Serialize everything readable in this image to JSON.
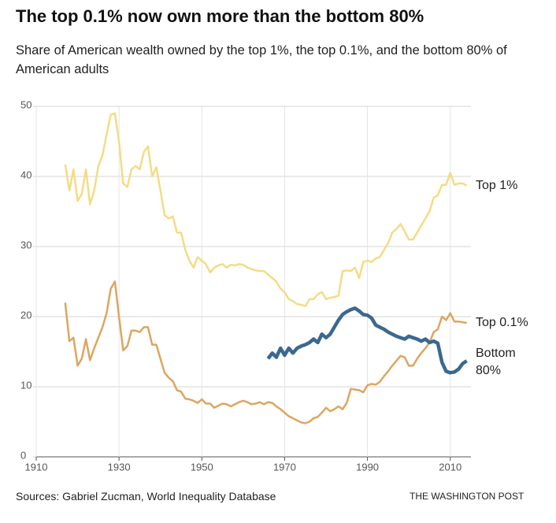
{
  "chart_data": {
    "type": "line",
    "title": "The top 0.1% now own more than the bottom 80%",
    "subtitle": "Share of American wealth owned by the top 1%, the top 0.1%, and the bottom 80% of American adults",
    "source": "Sources: Gabriel Zucman, World Inequality Database",
    "credit": "THE WASHINGTON POST",
    "xlim": [
      1910,
      2015
    ],
    "xticks": [
      1910,
      1930,
      1950,
      1970,
      1990,
      2010
    ],
    "ylim": [
      0,
      50
    ],
    "yticks": [
      0,
      10,
      20,
      30,
      40,
      50
    ],
    "grid": true,
    "series": [
      {
        "name": "Top 1%",
        "color": "#f3dc85",
        "x": [
          1917,
          1918,
          1919,
          1920,
          1921,
          1922,
          1923,
          1924,
          1925,
          1926,
          1927,
          1928,
          1929,
          1930,
          1931,
          1932,
          1933,
          1934,
          1935,
          1936,
          1937,
          1938,
          1939,
          1940,
          1941,
          1942,
          1943,
          1944,
          1945,
          1946,
          1947,
          1948,
          1949,
          1950,
          1951,
          1952,
          1953,
          1954,
          1955,
          1956,
          1957,
          1958,
          1959,
          1960,
          1961,
          1962,
          1963,
          1964,
          1965,
          1966,
          1967,
          1968,
          1969,
          1970,
          1971,
          1972,
          1973,
          1974,
          1975,
          1976,
          1977,
          1978,
          1979,
          1980,
          1981,
          1982,
          1983,
          1984,
          1985,
          1986,
          1987,
          1988,
          1989,
          1990,
          1991,
          1992,
          1993,
          1994,
          1995,
          1996,
          1997,
          1998,
          1999,
          2000,
          2001,
          2002,
          2003,
          2004,
          2005,
          2006,
          2007,
          2008,
          2009,
          2010,
          2011,
          2012,
          2013,
          2014
        ],
        "values": [
          41.7,
          38,
          41,
          36.5,
          37.5,
          41,
          36,
          38,
          41.5,
          43,
          46,
          48.8,
          49,
          45,
          39,
          38.5,
          41,
          41.5,
          41,
          43.5,
          44.3,
          40,
          41.3,
          38,
          34.5,
          34,
          34.3,
          32,
          32,
          29.5,
          28,
          27,
          28.5,
          28,
          27.5,
          26.3,
          27,
          27.3,
          27.5,
          27,
          27.4,
          27.3,
          27.5,
          27.4,
          27,
          26.8,
          26.6,
          26.5,
          26.5,
          26,
          25.5,
          25,
          24,
          23.5,
          22.5,
          22.2,
          21.8,
          21.7,
          21.5,
          22.5,
          22.5,
          23.2,
          23.5,
          22.5,
          22.7,
          22.8,
          23,
          26.5,
          26.6,
          26.5,
          27,
          25.5,
          27.8,
          28,
          27.8,
          28.3,
          28.5,
          29.5,
          30.5,
          32,
          32.5,
          33.2,
          32.2,
          31,
          31,
          32,
          33,
          34,
          35,
          37,
          37.3,
          38.8,
          38.8,
          40.5,
          38.8,
          39,
          39,
          38.7
        ]
      },
      {
        "name": "Top 0.1%",
        "color": "#dca661",
        "x": [
          1917,
          1918,
          1919,
          1920,
          1921,
          1922,
          1923,
          1924,
          1925,
          1926,
          1927,
          1928,
          1929,
          1930,
          1931,
          1932,
          1933,
          1934,
          1935,
          1936,
          1937,
          1938,
          1939,
          1940,
          1941,
          1942,
          1943,
          1944,
          1945,
          1946,
          1947,
          1948,
          1949,
          1950,
          1951,
          1952,
          1953,
          1954,
          1955,
          1956,
          1957,
          1958,
          1959,
          1960,
          1961,
          1962,
          1963,
          1964,
          1965,
          1966,
          1967,
          1968,
          1969,
          1970,
          1971,
          1972,
          1973,
          1974,
          1975,
          1976,
          1977,
          1978,
          1979,
          1980,
          1981,
          1982,
          1983,
          1984,
          1985,
          1986,
          1987,
          1988,
          1989,
          1990,
          1991,
          1992,
          1993,
          1994,
          1995,
          1996,
          1997,
          1998,
          1999,
          2000,
          2001,
          2002,
          2003,
          2004,
          2005,
          2006,
          2007,
          2008,
          2009,
          2010,
          2011,
          2012,
          2013,
          2014
        ],
        "values": [
          22,
          16.5,
          17,
          13,
          14,
          16.8,
          13.8,
          15.5,
          17,
          18.5,
          20.5,
          24,
          25,
          20,
          15.2,
          15.8,
          18,
          18,
          17.8,
          18.5,
          18.5,
          16,
          16,
          14,
          12,
          11.3,
          10.8,
          9.5,
          9.3,
          8.3,
          8.2,
          8,
          7.7,
          8.2,
          7.6,
          7.6,
          7,
          7.3,
          7.6,
          7.5,
          7.2,
          7.5,
          7.8,
          8,
          7.8,
          7.5,
          7.6,
          7.8,
          7.5,
          7.8,
          7.7,
          7.2,
          6.8,
          6.3,
          5.8,
          5.5,
          5.2,
          4.9,
          4.8,
          5,
          5.5,
          5.7,
          6.3,
          7,
          6.5,
          6.8,
          7.2,
          6.8,
          7.7,
          9.7,
          9.6,
          9.5,
          9.2,
          10.2,
          10.4,
          10.3,
          10.7,
          11.5,
          12.2,
          13,
          13.7,
          14.4,
          14.2,
          13,
          13,
          14,
          14.8,
          15.5,
          16.3,
          17.8,
          18.2,
          20,
          19.5,
          20.5,
          19.3,
          19.3,
          19.2,
          19.1
        ]
      },
      {
        "name": "Bottom 80%",
        "color": "#3b6890",
        "x": [
          1966,
          1967,
          1968,
          1969,
          1970,
          1971,
          1972,
          1973,
          1974,
          1975,
          1976,
          1977,
          1978,
          1979,
          1980,
          1981,
          1982,
          1983,
          1984,
          1985,
          1986,
          1987,
          1988,
          1989,
          1990,
          1991,
          1992,
          1993,
          1994,
          1995,
          1996,
          1997,
          1998,
          1999,
          2000,
          2001,
          2002,
          2003,
          2004,
          2005,
          2006,
          2007,
          2008,
          2009,
          2010,
          2011,
          2012,
          2013,
          2014
        ],
        "values": [
          14,
          14.8,
          14.2,
          15.5,
          14.5,
          15.5,
          14.8,
          15.5,
          15.8,
          16,
          16.3,
          16.8,
          16.3,
          17.5,
          17,
          17.5,
          18.5,
          19.5,
          20.3,
          20.7,
          21,
          21.2,
          20.8,
          20.3,
          20.2,
          19.8,
          18.8,
          18.5,
          18.2,
          17.8,
          17.5,
          17.2,
          17,
          16.8,
          17.2,
          17,
          16.8,
          16.5,
          16.8,
          16.3,
          16.5,
          16.2,
          13.5,
          12.2,
          12,
          12.1,
          12.5,
          13.3,
          13.7
        ]
      }
    ]
  }
}
